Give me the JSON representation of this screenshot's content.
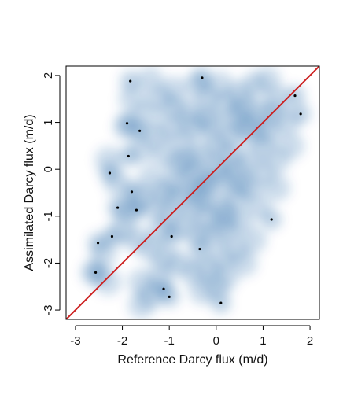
{
  "chart_data": {
    "type": "scatter",
    "title": "",
    "xlabel": "Reference Darcy flux (m/d)",
    "ylabel": "Assimilated Darcy flux (m/d)",
    "xlim": [
      -3.2,
      2.2
    ],
    "ylim": [
      -3.2,
      2.2
    ],
    "x_ticks": [
      -3,
      -2,
      -1,
      0,
      1,
      2
    ],
    "y_ticks": [
      -3,
      -2,
      -1,
      0,
      1,
      2
    ],
    "grid": false,
    "smoothed_density": true,
    "density_color": "#08519c",
    "reference_line": {
      "slope": 1,
      "intercept": 0,
      "color": "#cc1f1f"
    },
    "outlier_points": [
      {
        "x": -1.83,
        "y": 1.88
      },
      {
        "x": -0.3,
        "y": 1.95
      },
      {
        "x": 1.68,
        "y": 1.57
      },
      {
        "x": 1.8,
        "y": 1.18
      },
      {
        "x": -1.9,
        "y": 0.98
      },
      {
        "x": -1.63,
        "y": 0.82
      },
      {
        "x": -1.87,
        "y": 0.28
      },
      {
        "x": -2.27,
        "y": -0.08
      },
      {
        "x": -1.8,
        "y": -0.48
      },
      {
        "x": -2.1,
        "y": -0.82
      },
      {
        "x": -1.7,
        "y": -0.87
      },
      {
        "x": 1.18,
        "y": -1.07
      },
      {
        "x": -2.52,
        "y": -1.57
      },
      {
        "x": -2.22,
        "y": -1.43
      },
      {
        "x": -0.95,
        "y": -1.43
      },
      {
        "x": -0.35,
        "y": -1.7
      },
      {
        "x": -2.57,
        "y": -2.2
      },
      {
        "x": -1.12,
        "y": -2.55
      },
      {
        "x": -1.0,
        "y": -2.72
      },
      {
        "x": 0.1,
        "y": -2.85
      }
    ],
    "density_points": [
      [
        -0.6,
        1.2
      ],
      [
        -0.5,
        0.9
      ],
      [
        -0.2,
        1.1
      ],
      [
        0.2,
        1.4
      ],
      [
        0.5,
        1.6
      ],
      [
        0.8,
        1.8
      ],
      [
        1.1,
        1.9
      ],
      [
        1.3,
        1.5
      ],
      [
        0.9,
        1.2
      ],
      [
        0.6,
        0.9
      ],
      [
        0.3,
        0.7
      ],
      [
        0.0,
        0.5
      ],
      [
        -0.3,
        0.3
      ],
      [
        -0.7,
        0.6
      ],
      [
        -1.0,
        0.9
      ],
      [
        -1.2,
        1.5
      ],
      [
        -1.4,
        1.9
      ],
      [
        -0.9,
        1.7
      ],
      [
        -0.4,
        1.8
      ],
      [
        0.1,
        1.8
      ],
      [
        1.5,
        1.0
      ],
      [
        1.6,
        0.5
      ],
      [
        1.3,
        0.2
      ],
      [
        1.0,
        0.5
      ],
      [
        0.7,
        0.2
      ],
      [
        0.4,
        0.0
      ],
      [
        0.1,
        -0.2
      ],
      [
        -0.2,
        -0.3
      ],
      [
        -0.5,
        -0.1
      ],
      [
        -0.8,
        0.1
      ],
      [
        -1.1,
        0.3
      ],
      [
        -1.3,
        0.7
      ],
      [
        -1.5,
        1.2
      ],
      [
        -1.6,
        0.4
      ],
      [
        -1.4,
        -0.2
      ],
      [
        -1.1,
        -0.5
      ],
      [
        -0.8,
        -0.6
      ],
      [
        -0.5,
        -0.8
      ],
      [
        -0.2,
        -1.0
      ],
      [
        0.1,
        -0.8
      ],
      [
        0.4,
        -0.6
      ],
      [
        0.7,
        -0.4
      ],
      [
        1.0,
        -0.1
      ],
      [
        1.3,
        -0.4
      ],
      [
        0.9,
        -0.8
      ],
      [
        0.5,
        -1.1
      ],
      [
        0.2,
        -1.3
      ],
      [
        -0.1,
        -1.4
      ],
      [
        -0.4,
        -1.4
      ],
      [
        -0.7,
        -1.2
      ],
      [
        -1.0,
        -1.0
      ],
      [
        -1.3,
        -0.8
      ],
      [
        -1.6,
        -0.6
      ],
      [
        -1.9,
        -0.9
      ],
      [
        -2.0,
        -1.3
      ],
      [
        -1.7,
        -1.5
      ],
      [
        -1.4,
        -1.7
      ],
      [
        -1.1,
        -1.9
      ],
      [
        -0.8,
        -2.0
      ],
      [
        -0.5,
        -2.2
      ],
      [
        -0.2,
        -2.1
      ],
      [
        0.1,
        -1.9
      ],
      [
        0.4,
        -1.7
      ],
      [
        -2.4,
        -1.8
      ],
      [
        -2.6,
        -2.2
      ],
      [
        -2.3,
        -2.4
      ],
      [
        -1.6,
        -2.4
      ],
      [
        -1.6,
        -2.9
      ],
      [
        -1.4,
        -2.7
      ],
      [
        -1.2,
        -2.3
      ],
      [
        -0.3,
        -2.6
      ],
      [
        0.0,
        -2.5
      ],
      [
        0.2,
        -2.3
      ],
      [
        0.6,
        -2.0
      ],
      [
        0.8,
        -1.5
      ],
      [
        0.6,
        1.3
      ],
      [
        1.2,
        1.2
      ],
      [
        -0.1,
        0.9
      ],
      [
        -0.6,
        0.2
      ],
      [
        -0.9,
        -0.3
      ],
      [
        0.3,
        0.3
      ],
      [
        0.5,
        -0.3
      ],
      [
        -0.3,
        -0.6
      ],
      [
        0.8,
        0.8
      ],
      [
        -2.1,
        -0.3
      ],
      [
        -2.3,
        0.2
      ],
      [
        -1.8,
        1.5
      ],
      [
        -1.9,
        0.9
      ],
      [
        -0.2,
        1.5
      ],
      [
        0.4,
        1.1
      ],
      [
        0.0,
        0.0
      ],
      [
        -0.4,
        -0.4
      ],
      [
        0.2,
        -1.0
      ],
      [
        -1.2,
        -1.3
      ],
      [
        -0.9,
        1.3
      ],
      [
        1.1,
        0.8
      ]
    ]
  }
}
